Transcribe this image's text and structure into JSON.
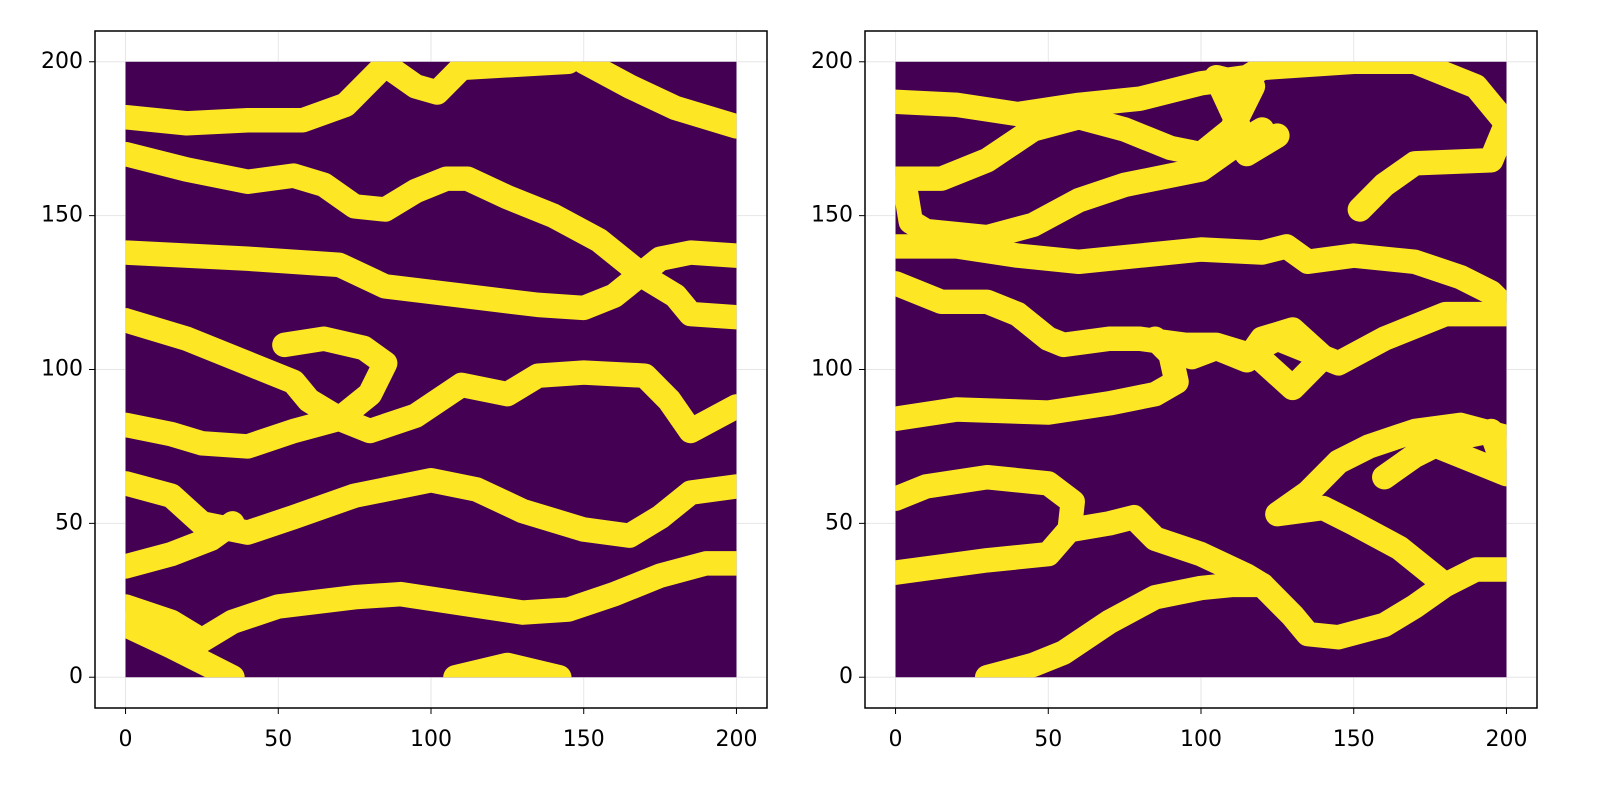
{
  "chart_data": [
    {
      "type": "line",
      "xlim": [
        -10,
        210
      ],
      "ylim": [
        -10,
        210
      ],
      "xticks": [
        0,
        50,
        100,
        150,
        200
      ],
      "yticks": [
        0,
        50,
        100,
        150,
        200
      ],
      "grid": true,
      "extent": [
        0,
        200
      ],
      "field_color": "#440154",
      "color": "#fde725",
      "line_width": 8,
      "series": [
        {
          "x": [
            0,
            20,
            40,
            58,
            72,
            85,
            95,
            102,
            110,
            145
          ],
          "values": [
            182,
            180,
            181,
            181,
            186,
            199,
            192,
            190,
            198,
            200
          ]
        },
        {
          "x": [
            150,
            165,
            180,
            200
          ],
          "values": [
            200,
            192,
            185,
            179
          ]
        },
        {
          "x": [
            0,
            20,
            40,
            55,
            65,
            75,
            85,
            95,
            105,
            112,
            125,
            140,
            155,
            170,
            180,
            185,
            200
          ],
          "values": [
            170,
            165,
            161,
            163,
            160,
            153,
            152,
            158,
            162,
            162,
            156,
            150,
            142,
            130,
            124,
            118,
            117
          ]
        },
        {
          "x": [
            0,
            40,
            70,
            85,
            110,
            135,
            150,
            160,
            175,
            185,
            200
          ],
          "values": [
            138,
            136,
            134,
            127,
            124,
            121,
            120,
            124,
            136,
            138,
            137
          ]
        },
        {
          "x": [
            0,
            20,
            40,
            55,
            60,
            70,
            80,
            95,
            110,
            125,
            135,
            150,
            170,
            178,
            185,
            200
          ],
          "values": [
            116,
            110,
            102,
            96,
            90,
            84,
            80,
            85,
            95,
            92,
            98,
            99,
            98,
            90,
            80,
            88
          ]
        },
        {
          "x": [
            0,
            15,
            25,
            40,
            55,
            70
          ],
          "values": [
            82,
            79,
            76,
            75,
            80,
            84
          ]
        },
        {
          "x": [
            52,
            65,
            78,
            85,
            80,
            70
          ],
          "values": [
            108,
            110,
            107,
            102,
            92,
            84
          ]
        },
        {
          "x": [
            0,
            15,
            25,
            40,
            55,
            75,
            100,
            115,
            130,
            150,
            165,
            175,
            185,
            200
          ],
          "values": [
            63,
            59,
            50,
            47,
            52,
            59,
            64,
            61,
            54,
            48,
            46,
            52,
            60,
            62
          ]
        },
        {
          "x": [
            0,
            15,
            28,
            35
          ],
          "values": [
            36,
            40,
            45,
            50
          ]
        },
        {
          "x": [
            0,
            15,
            25,
            35,
            50,
            75,
            90,
            110,
            130,
            145,
            160,
            175,
            190,
            200
          ],
          "values": [
            23,
            18,
            12,
            18,
            23,
            26,
            27,
            24,
            21,
            22,
            27,
            33,
            37,
            37
          ]
        },
        {
          "x": [
            0,
            15,
            25,
            35
          ],
          "values": [
            17,
            10,
            5,
            0
          ]
        },
        {
          "x": [
            108,
            125,
            142
          ],
          "values": [
            0,
            4,
            0
          ]
        }
      ]
    },
    {
      "type": "line",
      "xlim": [
        -10,
        210
      ],
      "ylim": [
        -10,
        210
      ],
      "xticks": [
        0,
        50,
        100,
        150,
        200
      ],
      "yticks": [
        0,
        50,
        100,
        150,
        200
      ],
      "grid": true,
      "extent": [
        0,
        200
      ],
      "field_color": "#440154",
      "color": "#fde725",
      "line_width": 8,
      "series": [
        {
          "x": [
            0,
            20,
            40,
            60,
            80,
            100,
            115,
            120,
            150,
            170,
            190,
            200,
            195,
            170,
            160,
            152
          ],
          "values": [
            187,
            186,
            183,
            186,
            188,
            193,
            195,
            198,
            200,
            200,
            192,
            180,
            168,
            167,
            160,
            152
          ]
        },
        {
          "x": [
            0,
            15,
            30,
            45,
            60,
            75,
            90,
            100,
            110,
            117,
            105,
            112,
            115,
            125
          ],
          "values": [
            162,
            162,
            168,
            178,
            182,
            178,
            172,
            170,
            178,
            192,
            195,
            180,
            170,
            176
          ]
        },
        {
          "x": [
            3,
            5,
            10,
            30,
            45,
            60,
            75,
            90,
            100,
            110,
            120
          ],
          "values": [
            160,
            148,
            145,
            143,
            147,
            155,
            160,
            163,
            165,
            172,
            178
          ]
        },
        {
          "x": [
            0,
            20,
            40,
            60,
            80,
            100,
            120,
            128,
            135,
            150,
            170,
            185,
            195,
            200
          ],
          "values": [
            140,
            140,
            137,
            135,
            137,
            139,
            138,
            140,
            135,
            137,
            135,
            130,
            125,
            120
          ]
        },
        {
          "x": [
            0,
            15,
            30,
            40,
            50,
            55,
            70,
            80,
            95,
            105,
            115,
            125,
            135,
            145,
            160,
            180,
            200
          ],
          "values": [
            128,
            122,
            122,
            118,
            110,
            108,
            110,
            110,
            108,
            108,
            105,
            110,
            106,
            102,
            110,
            118,
            118
          ]
        },
        {
          "x": [
            88,
            97,
            105,
            115,
            120,
            130,
            140,
            130,
            120
          ],
          "values": [
            107,
            104,
            107,
            103,
            110,
            113,
            104,
            94,
            103
          ]
        },
        {
          "x": [
            0,
            20,
            50,
            70,
            85,
            92,
            90,
            85
          ],
          "values": [
            84,
            87,
            86,
            89,
            92,
            96,
            105,
            110
          ]
        },
        {
          "x": [
            0,
            10,
            30,
            50,
            58,
            57,
            50,
            30,
            15,
            0
          ],
          "values": [
            58,
            62,
            65,
            63,
            57,
            48,
            40,
            38,
            36,
            34
          ]
        },
        {
          "x": [
            58,
            70,
            78,
            85,
            100,
            115,
            120,
            130,
            135,
            145,
            160,
            170,
            180,
            190,
            200
          ],
          "values": [
            48,
            50,
            52,
            45,
            40,
            33,
            30,
            20,
            14,
            13,
            17,
            23,
            30,
            35,
            35
          ]
        },
        {
          "x": [
            30,
            45,
            55,
            70,
            85,
            100,
            110,
            120
          ],
          "values": [
            0,
            4,
            8,
            18,
            26,
            29,
            30,
            30
          ]
        },
        {
          "x": [
            180,
            165,
            150,
            140,
            125,
            135,
            145,
            155,
            170,
            185,
            200
          ],
          "values": [
            30,
            42,
            50,
            55,
            53,
            60,
            70,
            75,
            80,
            82,
            78
          ]
        },
        {
          "x": [
            160,
            170,
            180,
            195,
            200,
            190,
            170
          ],
          "values": [
            65,
            72,
            77,
            80,
            66,
            70,
            78
          ]
        }
      ]
    }
  ]
}
